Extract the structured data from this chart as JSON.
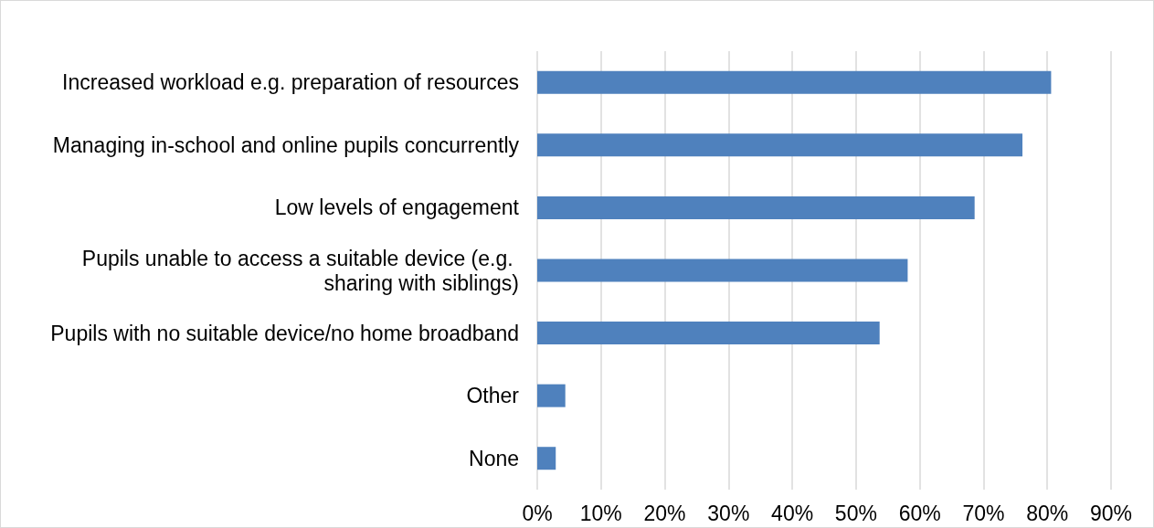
{
  "chart_data": {
    "type": "bar",
    "orientation": "horizontal",
    "categories": [
      "Increased workload e.g. preparation of resources",
      "Managing in-school and online pupils concurrently",
      "Low levels of engagement",
      "Pupils unable to access a suitable device (e.g. sharing with siblings)",
      "Pupils with no suitable device/no home broadband",
      "Other",
      "None"
    ],
    "values": [
      80.6,
      76.1,
      68.6,
      58.1,
      53.7,
      4.4,
      2.9
    ],
    "color": "#4f81bd",
    "xlim": [
      0,
      90
    ],
    "xticks": [
      {
        "value": 0,
        "label": "0%"
      },
      {
        "value": 10,
        "label": "10%"
      },
      {
        "value": 20,
        "label": "20%"
      },
      {
        "value": 30,
        "label": "30%"
      },
      {
        "value": 40,
        "label": "40%"
      },
      {
        "value": 50,
        "label": "50%"
      },
      {
        "value": 60,
        "label": "60%"
      },
      {
        "value": 70,
        "label": "70%"
      },
      {
        "value": 80,
        "label": "80%"
      },
      {
        "value": 90,
        "label": "90%"
      }
    ],
    "grid": "x"
  }
}
